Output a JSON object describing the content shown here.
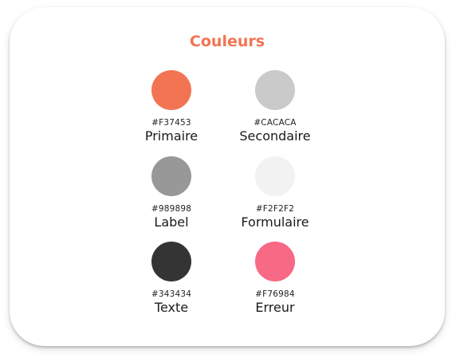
{
  "title": "Couleurs",
  "title_color": "#F37453",
  "colors": [
    {
      "hex": "#F37453",
      "name": "Primaire"
    },
    {
      "hex": "#CACACA",
      "name": "Secondaire"
    },
    {
      "hex": "#989898",
      "name": "Label"
    },
    {
      "hex": "#F2F2F2",
      "name": "Formulaire"
    },
    {
      "hex": "#343434",
      "name": "Texte"
    },
    {
      "hex": "#F76984",
      "name": "Erreur"
    }
  ]
}
